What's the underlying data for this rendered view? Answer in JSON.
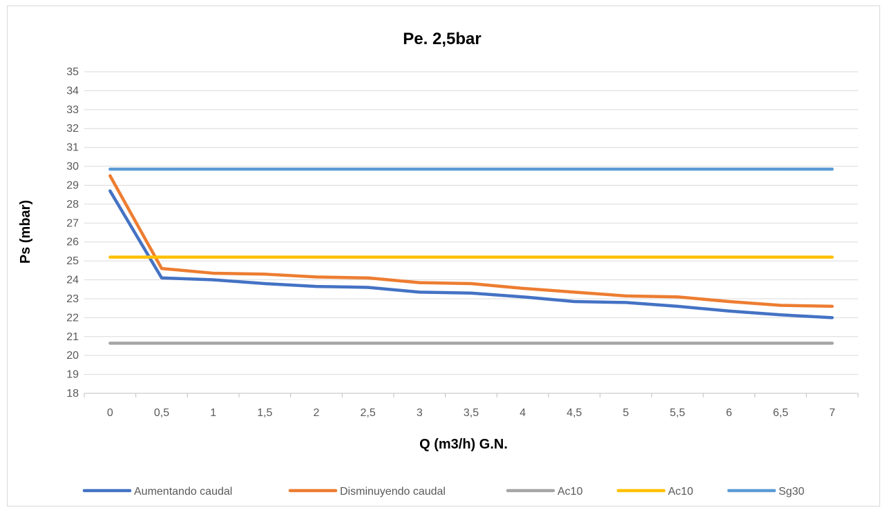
{
  "chart_data": {
    "type": "line",
    "title": "Pe. 2,5bar",
    "xlabel": "Q (m3/h) G.N.",
    "ylabel": "Ps (mbar)",
    "categories": [
      "0",
      "0,5",
      "1",
      "1,5",
      "2",
      "2,5",
      "3",
      "3,5",
      "4",
      "4,5",
      "5",
      "5,5",
      "6",
      "6,5",
      "7"
    ],
    "ylim": [
      18,
      35
    ],
    "yticks": [
      "18",
      "19",
      "20",
      "21",
      "22",
      "23",
      "24",
      "25",
      "26",
      "27",
      "28",
      "29",
      "30",
      "31",
      "32",
      "33",
      "34",
      "35"
    ],
    "grid": "horizontal",
    "legend_position": "bottom",
    "series": [
      {
        "name": "Aumentando caudal",
        "color": "#4472c4",
        "values": [
          28.7,
          24.1,
          24.0,
          23.8,
          23.65,
          23.6,
          23.35,
          23.3,
          23.1,
          22.85,
          22.8,
          22.6,
          22.35,
          22.15,
          22.0
        ]
      },
      {
        "name": "Disminuyendo caudal",
        "color": "#ed7d31",
        "values": [
          29.5,
          24.6,
          24.35,
          24.3,
          24.15,
          24.1,
          23.85,
          23.8,
          23.55,
          23.35,
          23.15,
          23.1,
          22.85,
          22.65,
          22.6
        ]
      },
      {
        "name": "Ac10",
        "color": "#a5a5a5",
        "values": [
          20.65,
          20.65,
          20.65,
          20.65,
          20.65,
          20.65,
          20.65,
          20.65,
          20.65,
          20.65,
          20.65,
          20.65,
          20.65,
          20.65,
          20.65
        ]
      },
      {
        "name": "Ac10",
        "color": "#ffc000",
        "values": [
          25.2,
          25.2,
          25.2,
          25.2,
          25.2,
          25.2,
          25.2,
          25.2,
          25.2,
          25.2,
          25.2,
          25.2,
          25.2,
          25.2,
          25.2
        ]
      },
      {
        "name": "Sg30",
        "color": "#5b9bd5",
        "values": [
          29.85,
          29.85,
          29.85,
          29.85,
          29.85,
          29.85,
          29.85,
          29.85,
          29.85,
          29.85,
          29.85,
          29.85,
          29.85,
          29.85,
          29.85
        ]
      }
    ]
  }
}
